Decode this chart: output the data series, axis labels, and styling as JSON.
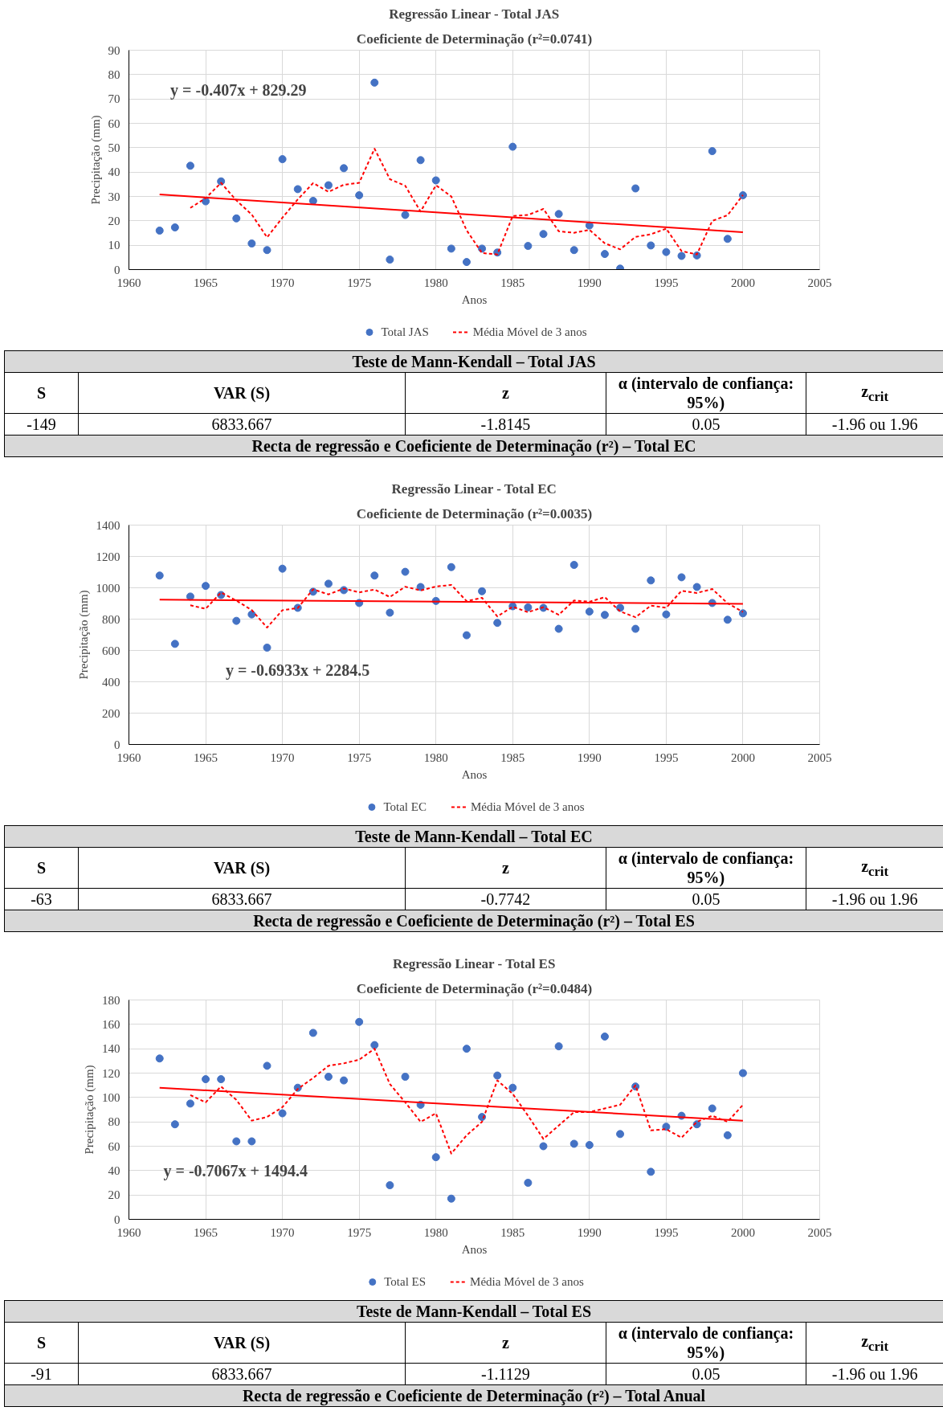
{
  "chart_data": [
    {
      "type": "scatter",
      "title": "Regressão Linear - Total JAS",
      "subtitle": "Coeficiente de Determinação (r²=0.0741)",
      "xlabel": "Anos",
      "ylabel": "Precipitação (mm)",
      "xlim": [
        1960,
        2005
      ],
      "xticks": [
        1960,
        1965,
        1970,
        1975,
        1980,
        1985,
        1990,
        1995,
        2000,
        2005
      ],
      "ylim": [
        0,
        90
      ],
      "yticks": [
        0,
        10,
        20,
        30,
        40,
        50,
        60,
        70,
        80,
        90
      ],
      "grid": true,
      "legend": "bottom",
      "marker": "circle",
      "x": [
        1962,
        1963,
        1964,
        1965,
        1966,
        1967,
        1968,
        1969,
        1970,
        1971,
        1972,
        1973,
        1974,
        1975,
        1976,
        1977,
        1978,
        1979,
        1980,
        1981,
        1982,
        1983,
        1984,
        1985,
        1986,
        1987,
        1988,
        1989,
        1990,
        1991,
        1992,
        1993,
        1994,
        1995,
        1996,
        1997,
        1998,
        1999,
        2000
      ],
      "series": [
        {
          "name": "Total JAS",
          "color": "#4472c4",
          "values": [
            16,
            17.3,
            42.6,
            28,
            36.2,
            21,
            10.7,
            8,
            45.3,
            33,
            28.2,
            34.6,
            41.6,
            30.5,
            76.7,
            4.1,
            22.4,
            44.9,
            36.6,
            8.6,
            3.1,
            8.6,
            7,
            50.4,
            9.7,
            14.6,
            22.8,
            8,
            18.1,
            6.4,
            0.4,
            33.3,
            9.9,
            7.2,
            5.6,
            5.8,
            48.6,
            12.6,
            30.5
          ]
        },
        {
          "type": "line",
          "color": "#ff0000",
          "line_style": "solid",
          "marker": "none",
          "x": [
            1962,
            2000
          ],
          "values": [
            30.8,
            15.3
          ]
        },
        {
          "type": "line",
          "name": "Média Móvel de 3 anos",
          "color": "#ff0000",
          "line_style": "dashed",
          "marker": "none",
          "x": [
            1964,
            1965,
            1966,
            1967,
            1968,
            1969,
            1970,
            1971,
            1972,
            1973,
            1974,
            1975,
            1976,
            1977,
            1978,
            1979,
            1980,
            1981,
            1982,
            1983,
            1984,
            1985,
            1986,
            1987,
            1988,
            1989,
            1990,
            1991,
            1992,
            1993,
            1994,
            1995,
            1996,
            1997,
            1998,
            1999,
            2000
          ],
          "values": [
            25.3,
            29.3,
            35.6,
            28.4,
            22.6,
            13.2,
            21.3,
            28.8,
            35.5,
            31.9,
            34.8,
            35.6,
            49.6,
            37.1,
            34.4,
            23.8,
            34.6,
            30.0,
            16.1,
            6.8,
            6.2,
            22.0,
            22.4,
            24.9,
            15.7,
            15.1,
            16.3,
            10.8,
            8.3,
            13.4,
            14.5,
            16.8,
            7.6,
            6.2,
            20.0,
            22.3,
            30.6
          ]
        }
      ],
      "annotations": [
        "y = -0.407x + 829.29"
      ]
    },
    {
      "type": "other",
      "title": "Teste de Mann-Kendall – Total JAS",
      "annotations": [
        "S",
        "VAR (S)",
        "z",
        "α (intervalo de confiança: 95%)",
        "z$_{crit}$",
        "-149",
        "6833.667",
        "-1.8145",
        "0.05",
        "-1.96 ou 1.96",
        "Recta de regressão e Coeficiente de Determinação (r²) – Total EC"
      ]
    },
    {
      "type": "scatter",
      "title": "Regressão Linear - Total EC",
      "subtitle": "Coeficiente de Determinação (r²=0.0035)",
      "xlabel": "Anos",
      "ylabel": "Precipitação (mm)",
      "xlim": [
        1960,
        2005
      ],
      "xticks": [
        1960,
        1965,
        1970,
        1975,
        1980,
        1985,
        1990,
        1995,
        2000,
        2005
      ],
      "ylim": [
        0,
        1400
      ],
      "yticks": [
        0,
        200,
        400,
        600,
        800,
        1000,
        1200,
        1400
      ],
      "grid": true,
      "legend": "bottom",
      "marker": "circle",
      "x": [
        1962,
        1963,
        1964,
        1965,
        1966,
        1967,
        1968,
        1969,
        1970,
        1971,
        1972,
        1973,
        1974,
        1975,
        1976,
        1977,
        1978,
        1979,
        1980,
        1981,
        1982,
        1983,
        1984,
        1985,
        1986,
        1987,
        1988,
        1989,
        1990,
        1991,
        1992,
        1993,
        1994,
        1995,
        1996,
        1997,
        1998,
        1999,
        2000
      ],
      "series": [
        {
          "name": "Total EC",
          "color": "#4472c4",
          "values": [
            1078,
            642,
            944,
            1012,
            954,
            789,
            830,
            618,
            1122,
            872,
            975,
            1026,
            985,
            903,
            1078,
            841,
            1102,
            1005,
            916,
            1132,
            697,
            978,
            776,
            882,
            875,
            872,
            738,
            1146,
            848,
            827,
            872,
            738,
            1047,
            830,
            1067,
            1005,
            903,
            796,
            837
          ]
        },
        {
          "type": "line",
          "color": "#ff0000",
          "line_style": "solid",
          "marker": "none",
          "x": [
            1962,
            2000
          ],
          "values": [
            924,
            898
          ]
        },
        {
          "type": "line",
          "name": "Média Móvel de 3 anos",
          "color": "#ff0000",
          "line_style": "dashed",
          "marker": "none",
          "x": [
            1964,
            1965,
            1966,
            1967,
            1968,
            1969,
            1970,
            1971,
            1972,
            1973,
            1974,
            1975,
            1976,
            1977,
            1978,
            1979,
            1980,
            1981,
            1982,
            1983,
            1984,
            1985,
            1986,
            1987,
            1988,
            1989,
            1990,
            1991,
            1992,
            1993,
            1994,
            1995,
            1996,
            1997,
            1998,
            1999,
            2000
          ],
          "values": [
            888,
            866,
            970,
            918,
            858,
            746,
            857,
            871,
            990,
            958,
            995,
            971,
            989,
            941,
            1007,
            983,
            1008,
            1018,
            915,
            936,
            817,
            879,
            844,
            876,
            828,
            919,
            911,
            940,
            849,
            812,
            886,
            872,
            981,
            967,
            992,
            901,
            845
          ]
        }
      ],
      "annotations": [
        "y = -0.6933x + 2284.5"
      ]
    },
    {
      "type": "other",
      "title": "Teste de Mann-Kendall – Total EC",
      "annotations": [
        "S",
        "VAR (S)",
        "z",
        "α (intervalo de confiança: 95%)",
        "z$_{crit}$",
        "-63",
        "6833.667",
        "-0.7742",
        "0.05",
        "-1.96 ou 1.96",
        "Recta de regressão e Coeficiente de Determinação (r²) – Total ES"
      ]
    },
    {
      "type": "scatter",
      "title": "Regressão Linear - Total ES",
      "subtitle": "Coeficiente de Determinação (r²=0.0484)",
      "xlabel": "Anos",
      "ylabel": "Precipitação (mm)",
      "xlim": [
        1960,
        2005
      ],
      "xticks": [
        1960,
        1965,
        1970,
        1975,
        1980,
        1985,
        1990,
        1995,
        2000,
        2005
      ],
      "ylim": [
        0,
        180
      ],
      "yticks": [
        0,
        20,
        40,
        60,
        80,
        100,
        120,
        140,
        160,
        180
      ],
      "grid": true,
      "legend": "bottom",
      "marker": "circle",
      "x": [
        1962,
        1963,
        1964,
        1965,
        1966,
        1967,
        1968,
        1969,
        1970,
        1971,
        1972,
        1973,
        1974,
        1975,
        1976,
        1977,
        1978,
        1979,
        1980,
        1981,
        1982,
        1983,
        1984,
        1985,
        1986,
        1987,
        1988,
        1989,
        1990,
        1991,
        1992,
        1993,
        1994,
        1995,
        1996,
        1997,
        1998,
        1999,
        2000
      ],
      "series": [
        {
          "name": "Total ES",
          "color": "#4472c4",
          "values": [
            132,
            78,
            95,
            115,
            115,
            64,
            64,
            126,
            87,
            108,
            153,
            117,
            114,
            162,
            143,
            28,
            117,
            94,
            51,
            17,
            140,
            84,
            118,
            108,
            30,
            60,
            142,
            62,
            61,
            150,
            70,
            109,
            39,
            76,
            85,
            78,
            91,
            69,
            120
          ]
        },
        {
          "type": "line",
          "color": "#ff0000",
          "line_style": "solid",
          "marker": "none",
          "x": [
            1962,
            2000
          ],
          "values": [
            108,
            81
          ]
        },
        {
          "type": "line",
          "name": "Média Móvel de 3 anos",
          "color": "#ff0000",
          "line_style": "dashed",
          "marker": "none",
          "x": [
            1964,
            1965,
            1966,
            1967,
            1968,
            1969,
            1970,
            1971,
            1972,
            1973,
            1974,
            1975,
            1976,
            1977,
            1978,
            1979,
            1980,
            1981,
            1982,
            1983,
            1984,
            1985,
            1986,
            1987,
            1988,
            1989,
            1990,
            1991,
            1992,
            1993,
            1994,
            1995,
            1996,
            1997,
            1998,
            1999,
            2000
          ],
          "values": [
            102,
            96,
            109,
            98,
            81,
            84,
            92,
            107,
            116,
            126,
            128,
            131,
            140,
            111,
            96,
            80,
            87,
            54,
            69,
            80,
            114,
            103,
            85,
            66,
            77,
            88,
            88,
            91,
            94,
            110,
            73,
            74,
            67,
            80,
            85,
            80,
            94
          ]
        }
      ],
      "annotations": [
        "y = -0.7067x + 1494.4"
      ]
    },
    {
      "type": "other",
      "title": "Teste de Mann-Kendall – Total ES",
      "annotations": [
        "S",
        "VAR (S)",
        "z",
        "α (intervalo de confiança: 95%)",
        "z$_{crit}$",
        "-91",
        "6833.667",
        "-1.1129",
        "0.05",
        "-1.96 ou 1.96",
        "Recta de regressão e Coeficiente de Determinação (r²) – Total Anual"
      ]
    }
  ]
}
